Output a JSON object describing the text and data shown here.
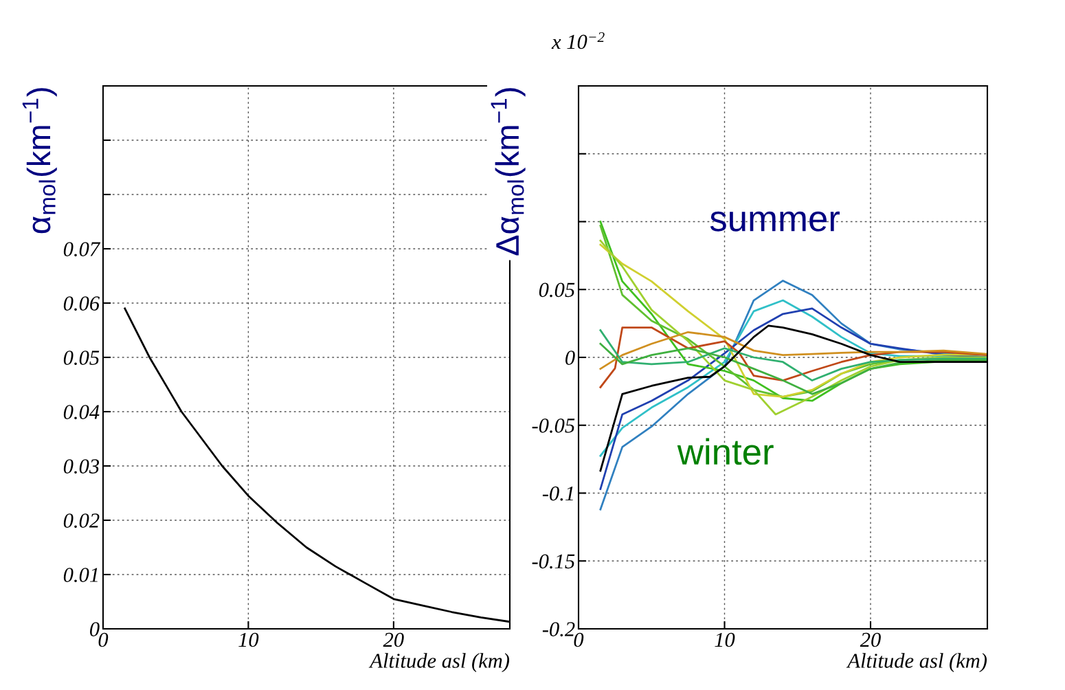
{
  "chart_data": [
    {
      "type": "line",
      "xlabel": "Altitude asl (km)",
      "ylabel": "α$_{mol}$(km$^{−1}$)",
      "xlim": [
        0,
        28
      ],
      "ylim": [
        0,
        0.1
      ],
      "xticks": [
        0,
        10,
        20
      ],
      "yticks": [
        0,
        0.01,
        0.02,
        0.03,
        0.04,
        0.05,
        0.06,
        0.07,
        {
          "value": 0.08,
          "label": null
        },
        {
          "value": 0.09,
          "label": null
        },
        {
          "value": 0.1,
          "label": null
        }
      ],
      "grid": true,
      "series": [
        {
          "color": "#000000",
          "x": [
            1.5,
            3.2,
            5.4,
            8.2,
            10,
            12,
            14,
            16,
            18,
            20,
            22,
            24,
            26,
            28
          ],
          "values": [
            0.059,
            0.05,
            0.04,
            0.03,
            0.0245,
            0.0195,
            0.015,
            0.0115,
            0.0085,
            0.0055,
            0.0043,
            0.0031,
            0.0021,
            0.0013
          ]
        }
      ]
    },
    {
      "type": "line",
      "xlabel": "Altitude asl (km)",
      "ylabel": "Δα$_{mol}$(km$^{−1}$)",
      "xlim": [
        0,
        28
      ],
      "ylim": [
        -0.2,
        0.2
      ],
      "xticks": [
        0,
        10,
        20
      ],
      "yticks": [
        -0.2,
        -0.15,
        -0.1,
        -0.05,
        0,
        0.05,
        {
          "value": 0.1,
          "label": null
        },
        {
          "value": 0.15,
          "label": null
        },
        {
          "value": 0.2,
          "label": null
        }
      ],
      "grid": true,
      "annotations": [
        "x 10$^{−2}$",
        "summer",
        "winter"
      ],
      "series": [
        {
          "color": "#3080c0",
          "x": [
            1.5,
            3,
            5,
            7.5,
            10,
            12,
            14,
            16,
            18,
            20,
            22,
            25,
            28
          ],
          "values": [
            -0.112,
            -0.066,
            -0.051,
            -0.027,
            -0.0067,
            0.042,
            0.0565,
            0.046,
            0.025,
            0.01,
            0.006,
            0.003,
            0
          ]
        },
        {
          "color": "#30c0c8",
          "x": [
            1.5,
            3,
            5,
            7.5,
            10,
            12,
            14,
            16,
            18,
            20,
            22,
            25,
            28
          ],
          "values": [
            -0.0725,
            -0.052,
            -0.037,
            -0.022,
            -0.0034,
            0.034,
            0.042,
            0.03,
            0.015,
            0.003,
            0.001,
            0.001,
            0
          ]
        },
        {
          "color": "#2040b0",
          "x": [
            1.5,
            3,
            5,
            7.5,
            10,
            12,
            14,
            16,
            18,
            20,
            22,
            25,
            28
          ],
          "values": [
            -0.097,
            -0.042,
            -0.032,
            -0.017,
            0.003,
            0.02,
            0.032,
            0.036,
            0.022,
            0.01,
            0.0067,
            0.002,
            0
          ]
        },
        {
          "color": "#40c020",
          "x": [
            1.5,
            3,
            5,
            7.5,
            10,
            12,
            14,
            16,
            18,
            20,
            22,
            25,
            28
          ],
          "values": [
            0.1,
            0.056,
            0.032,
            -0.005,
            -0.01,
            -0.017,
            -0.03,
            -0.032,
            -0.019,
            -0.0084,
            -0.005,
            -0.003,
            -0.003
          ]
        },
        {
          "color": "#60c030",
          "x": [
            1.5,
            3,
            5,
            7.5,
            10,
            12,
            14,
            16,
            18,
            20,
            22,
            25,
            28
          ],
          "values": [
            0.097,
            0.046,
            0.027,
            0.0135,
            -0.0067,
            -0.024,
            -0.029,
            -0.025,
            -0.012,
            -0.005,
            -0.002,
            -0.001,
            -0.001
          ]
        },
        {
          "color": "#d0d030",
          "x": [
            1.5,
            3,
            5,
            7.5,
            10,
            12,
            14,
            16,
            18,
            20,
            22,
            25,
            28
          ],
          "values": [
            0.083,
            0.069,
            0.056,
            0.034,
            0.0135,
            -0.027,
            -0.029,
            -0.024,
            -0.012,
            -0.0034,
            0,
            0.002,
            0.002
          ]
        },
        {
          "color": "#a0d030",
          "x": [
            1.5,
            3,
            5,
            7.5,
            10,
            12,
            13.5,
            16,
            18,
            20,
            22,
            25,
            28
          ],
          "values": [
            0.086,
            0.067,
            0.035,
            0.012,
            -0.017,
            -0.024,
            -0.042,
            -0.029,
            -0.017,
            -0.0067,
            -0.002,
            0,
            0
          ]
        },
        {
          "color": "#c04818",
          "x": [
            1.5,
            2.5,
            3,
            5,
            7.5,
            10,
            11,
            12,
            14,
            16,
            18,
            20,
            22,
            25,
            28
          ],
          "values": [
            -0.022,
            -0.008,
            0.022,
            0.022,
            0.0067,
            0.0118,
            0.0034,
            -0.0135,
            -0.017,
            -0.01,
            -0.0034,
            0.0017,
            0.004,
            0.004,
            0.0017
          ]
        },
        {
          "color": "#d09020",
          "x": [
            1.5,
            3,
            5,
            7.5,
            10,
            12,
            14,
            16,
            18,
            20,
            22,
            25,
            28
          ],
          "values": [
            -0.0084,
            0.0017,
            0.01,
            0.0186,
            0.015,
            0.005,
            0.0017,
            0.0025,
            0.0034,
            0.004,
            0.004,
            0.005,
            0.0025
          ]
        },
        {
          "color": "#30b070",
          "x": [
            1.5,
            3,
            5,
            7.5,
            10,
            12,
            14,
            16,
            18,
            20,
            22,
            25,
            28
          ],
          "values": [
            0.02,
            -0.0034,
            -0.005,
            -0.0034,
            0.0067,
            0,
            -0.0034,
            -0.017,
            -0.0084,
            -0.0034,
            -0.002,
            -0.001,
            -0.001
          ]
        },
        {
          "color": "#40b040",
          "x": [
            1.5,
            3,
            5,
            7.5,
            10,
            12,
            14,
            16,
            18,
            20,
            22,
            25,
            28
          ],
          "values": [
            0.01,
            -0.005,
            0.0017,
            0.0067,
            0,
            -0.0084,
            -0.017,
            -0.027,
            -0.019,
            -0.0084,
            -0.004,
            -0.002,
            -0.002
          ]
        },
        {
          "color": "#000000",
          "x": [
            1.5,
            3,
            5,
            7.5,
            9,
            10,
            12,
            13,
            14,
            16,
            18,
            20,
            22,
            25,
            28
          ],
          "values": [
            -0.0835,
            -0.027,
            -0.021,
            -0.015,
            -0.0143,
            -0.0067,
            0.015,
            0.0233,
            0.022,
            0.017,
            0.01,
            0.0017,
            -0.0034,
            -0.0034,
            -0.0034
          ]
        }
      ]
    }
  ]
}
